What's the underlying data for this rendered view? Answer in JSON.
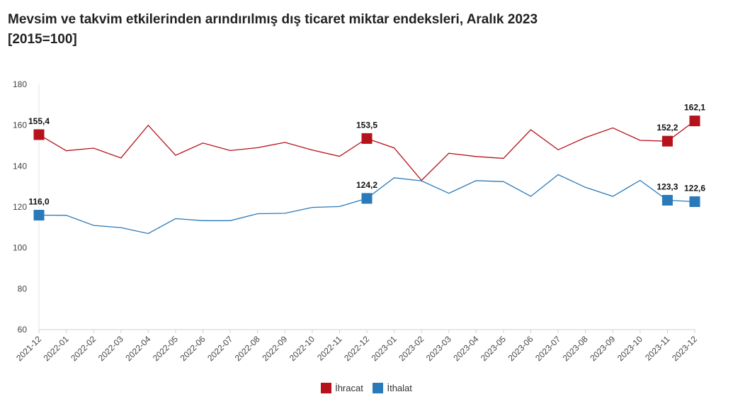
{
  "title": {
    "line1": "Mevsim ve takvim etkilerinden arındırılmış dış ticaret miktar endeksleri, Aralık 2023",
    "line2": "[2015=100]"
  },
  "chart_data": {
    "type": "line",
    "x": [
      "2021-12",
      "2022-01",
      "2022-02",
      "2022-03",
      "2022-04",
      "2022-05",
      "2022-06",
      "2022-07",
      "2022-08",
      "2022-09",
      "2022-10",
      "2022-11",
      "2022-12",
      "2023-01",
      "2023-02",
      "2023-03",
      "2023-04",
      "2023-05",
      "2023-06",
      "2023-07",
      "2023-08",
      "2023-09",
      "2023-10",
      "2023-11",
      "2023-12"
    ],
    "ylim": [
      60,
      180
    ],
    "yticks": [
      60,
      80,
      100,
      120,
      140,
      160,
      180
    ],
    "grid": false,
    "legend_position": "bottom",
    "series": [
      {
        "name": "İhracat",
        "color": "#b5121b",
        "values": [
          155.4,
          147.5,
          148.8,
          144.0,
          160.0,
          145.3,
          151.3,
          147.6,
          149.0,
          151.6,
          147.9,
          144.8,
          153.5,
          148.9,
          133.0,
          146.3,
          144.7,
          143.8,
          157.8,
          148.0,
          154.0,
          158.7,
          152.6,
          152.2,
          162.1
        ],
        "labeled": [
          {
            "index": 0,
            "label": "155,4"
          },
          {
            "index": 12,
            "label": "153,5"
          },
          {
            "index": 23,
            "label": "152,2"
          },
          {
            "index": 24,
            "label": "162,1"
          }
        ]
      },
      {
        "name": "İthalat",
        "color": "#2a7ab9",
        "values": [
          116.0,
          115.9,
          111.0,
          109.9,
          107.0,
          114.3,
          113.3,
          113.3,
          116.7,
          116.9,
          119.8,
          120.2,
          124.2,
          134.3,
          132.8,
          126.7,
          132.9,
          132.4,
          125.2,
          135.8,
          129.6,
          125.2,
          133.0,
          123.3,
          122.6
        ],
        "labeled": [
          {
            "index": 0,
            "label": "116,0"
          },
          {
            "index": 12,
            "label": "124,2"
          },
          {
            "index": 23,
            "label": "123,3"
          },
          {
            "index": 24,
            "label": "122,6"
          }
        ]
      }
    ]
  }
}
